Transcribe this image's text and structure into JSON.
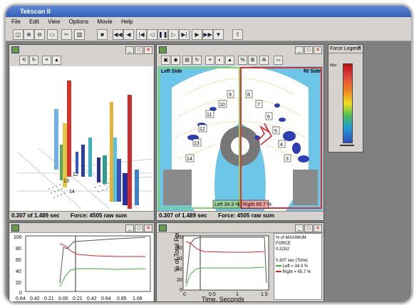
{
  "app": {
    "title": "Tekscan II",
    "menu": [
      "File",
      "Edit",
      "View",
      "Options",
      "Movie",
      "Help"
    ]
  },
  "toolbar_icons": [
    "open-icon",
    "zoom-in-icon",
    "zoom-out-icon",
    "page-icon",
    "scissors-icon",
    "bar-graph-icon",
    "stop-icon",
    "rewind-icon",
    "step-back-icon",
    "first-frame-icon",
    "prev-frame-icon",
    "pause-icon",
    "next-frame-icon",
    "last-frame-icon",
    "play-icon",
    "fast-forward-icon",
    "record-icon",
    "export-icon"
  ],
  "view3d": {
    "row_labels": [
      "14",
      "13",
      "12",
      "11",
      "10"
    ],
    "status_time": "0.307 of 1.489 sec",
    "status_force": "Force:  4505 raw sum"
  },
  "view2d": {
    "left_label": "Left Side",
    "right_label": "Rt Side",
    "tooth_numbers_left": [
      "9",
      "10",
      "11",
      "12",
      "13",
      "14"
    ],
    "tooth_numbers_right": [
      "8",
      "7",
      "6",
      "5",
      "4",
      "3"
    ],
    "left_pct": "Left 34.3 %",
    "right_pct": "Right 65.7 %",
    "status_time": "0.307 of 1.489 sec",
    "status_force": "Force:  4505 raw sum"
  },
  "legend": {
    "title": "Force Legend",
    "max_label": "Max"
  },
  "graph_small": {
    "y_ticks": [
      "100",
      "80",
      "60",
      "40",
      "20",
      "0"
    ],
    "x_ticks": [
      "0.64",
      "0.42",
      "0.21",
      "0.00",
      "0.21",
      "0.42",
      "0.64",
      "0.85",
      "1.06"
    ]
  },
  "graph_main": {
    "y_ticks": [
      "100",
      "80",
      "60",
      "40",
      "20",
      "0"
    ],
    "x_ticks": [
      "0",
      "0.5",
      "1",
      "1.5"
    ],
    "ylabel": "% of Total Force",
    "xlabel": "Time, Seconds"
  },
  "stats": {
    "title": "% of MAXIMUM FORCE",
    "subtitle": "0.2(3)2",
    "time": "0.307 sec (Time)",
    "left": "Left = 34.3 %",
    "right": "Right = 65.7 %"
  },
  "colors": {
    "line_total": "#555555",
    "line_left": "#3fae3f",
    "line_right": "#e02020",
    "left_border": "#7fd36a",
    "right_border": "#e03030",
    "arch_bg": "#6cc6e8"
  }
}
